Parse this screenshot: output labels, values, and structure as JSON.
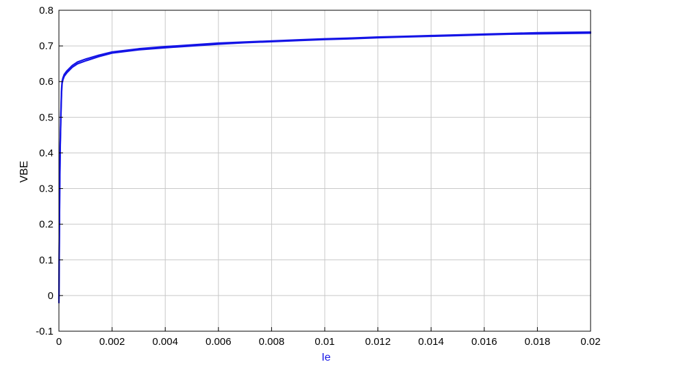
{
  "chart_data": {
    "type": "line",
    "title": "",
    "xlabel": "Ie",
    "ylabel": "VBE",
    "xlim": [
      0,
      0.02
    ],
    "ylim": [
      -0.1,
      0.8
    ],
    "xticks": [
      0,
      0.002,
      0.004,
      0.006,
      0.008,
      0.01,
      0.012,
      0.014,
      0.016,
      0.018,
      0.02
    ],
    "xtick_labels": [
      "0",
      "0.002",
      "0.004",
      "0.006",
      "0.008",
      "0.01",
      "0.012",
      "0.014",
      "0.016",
      "0.018",
      "0.02"
    ],
    "yticks": [
      -0.1,
      0,
      0.1,
      0.2,
      0.3,
      0.4,
      0.5,
      0.6,
      0.7,
      0.8
    ],
    "ytick_labels": [
      "-0.1",
      "0",
      "0.1",
      "0.2",
      "0.3",
      "0.4",
      "0.5",
      "0.6",
      "0.7",
      "0.8"
    ],
    "grid": true,
    "legend": "none",
    "colors": {
      "series": "#1414e6",
      "xlabel": "#1414e6",
      "ylabel": "#000000",
      "grid": "#c8c8c8",
      "frame": "#000000"
    },
    "series": [
      {
        "x": [
          0,
          1e-05,
          2e-05,
          3e-05,
          5e-05,
          8e-05,
          0.0001,
          0.00012,
          0.00015,
          0.0002,
          0.0003,
          0.0005,
          0.0007,
          0.001,
          0.0015,
          0.002,
          0.003,
          0.004,
          0.005,
          0.006,
          0.007,
          0.008,
          0.009,
          0.01,
          0.011,
          0.012,
          0.013,
          0.014,
          0.015,
          0.016,
          0.017,
          0.018,
          0.019,
          0.02
        ],
        "y": [
          -0.02,
          0.1,
          0.2,
          0.3,
          0.42,
          0.52,
          0.57,
          0.595,
          0.605,
          0.615,
          0.625,
          0.64,
          0.65,
          0.658,
          0.67,
          0.68,
          0.689,
          0.695,
          0.7,
          0.705,
          0.709,
          0.712,
          0.715,
          0.718,
          0.72,
          0.723,
          0.725,
          0.727,
          0.729,
          0.731,
          0.733,
          0.734,
          0.735,
          0.736
        ]
      },
      {
        "x": [
          0,
          1e-05,
          2e-05,
          3e-05,
          5e-05,
          8e-05,
          0.0001,
          0.00012,
          0.00015,
          0.0002,
          0.0003,
          0.0005,
          0.0007,
          0.001,
          0.0015,
          0.002,
          0.003,
          0.004,
          0.005,
          0.006,
          0.007,
          0.008,
          0.009,
          0.01,
          0.011,
          0.012,
          0.013,
          0.014,
          0.015,
          0.016,
          0.017,
          0.018,
          0.019,
          0.02
        ],
        "y": [
          -0.01,
          0.11,
          0.21,
          0.31,
          0.43,
          0.53,
          0.58,
          0.6,
          0.61,
          0.62,
          0.63,
          0.645,
          0.655,
          0.663,
          0.674,
          0.683,
          0.692,
          0.698,
          0.703,
          0.708,
          0.711,
          0.714,
          0.717,
          0.72,
          0.722,
          0.725,
          0.727,
          0.729,
          0.731,
          0.733,
          0.735,
          0.737,
          0.738,
          0.739
        ]
      }
    ]
  }
}
